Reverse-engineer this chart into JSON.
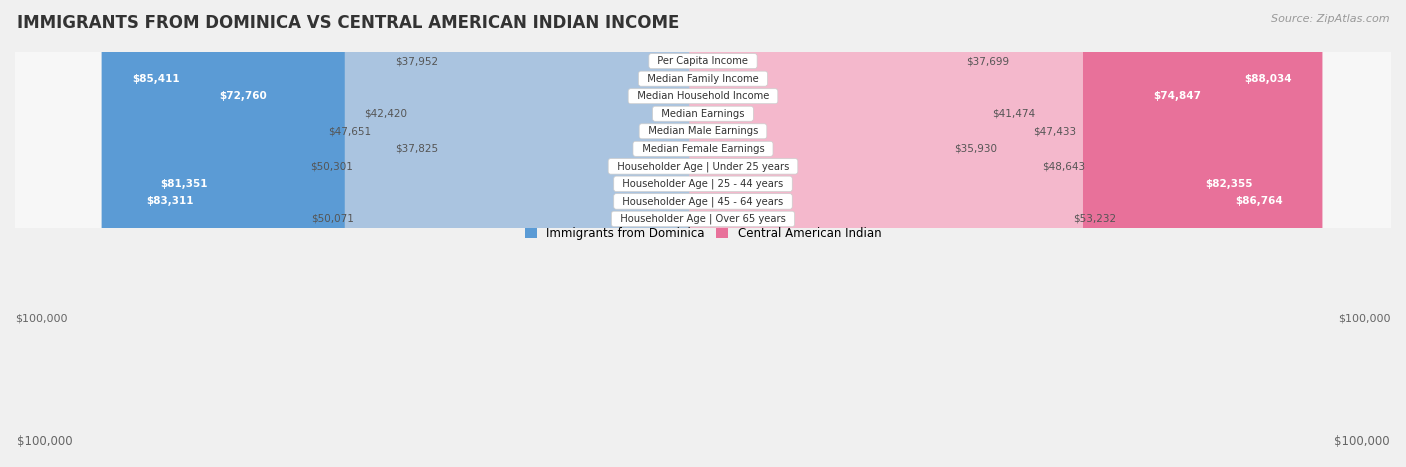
{
  "title": "IMMIGRANTS FROM DOMINICA VS CENTRAL AMERICAN INDIAN INCOME",
  "source": "Source: ZipAtlas.com",
  "categories": [
    "Per Capita Income",
    "Median Family Income",
    "Median Household Income",
    "Median Earnings",
    "Median Male Earnings",
    "Median Female Earnings",
    "Householder Age | Under 25 years",
    "Householder Age | 25 - 44 years",
    "Householder Age | 45 - 64 years",
    "Householder Age | Over 65 years"
  ],
  "left_values": [
    37952,
    85411,
    72760,
    42420,
    47651,
    37825,
    50301,
    81351,
    83311,
    50071
  ],
  "right_values": [
    37699,
    88034,
    74847,
    41474,
    47433,
    35930,
    48643,
    82355,
    86764,
    53232
  ],
  "left_labels": [
    "$37,952",
    "$85,411",
    "$72,760",
    "$42,420",
    "$47,651",
    "$37,825",
    "$50,301",
    "$81,351",
    "$83,311",
    "$50,071"
  ],
  "right_labels": [
    "$37,699",
    "$88,034",
    "$74,847",
    "$41,474",
    "$47,433",
    "$35,930",
    "$48,643",
    "$82,355",
    "$86,764",
    "$53,232"
  ],
  "left_color_light": "#aac4e0",
  "left_color_dark": "#5b9bd5",
  "right_color_light": "#f4b8cc",
  "right_color_dark": "#e8719a",
  "max_value": 100000,
  "legend_left": "Immigrants from Dominica",
  "legend_right": "Central American Indian",
  "bg_color": "#f0f0f0",
  "row_bg_color": "#f7f7f7",
  "row_border_color": "#d8d8d8",
  "threshold": 60000
}
